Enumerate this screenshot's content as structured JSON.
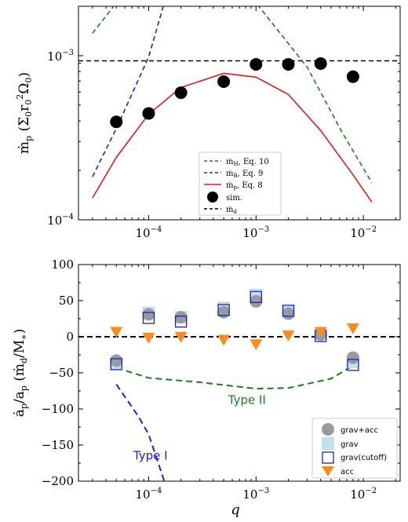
{
  "chart_data": [
    {
      "type": "line",
      "xlabel": "",
      "ylabel_main": "ṁ",
      "ylabel_sub": "p",
      "ylabel_rest": " (Σ",
      "ylabel_tail": "0",
      "ylabel_tail2": "r",
      "ylabel_tail3": "0",
      "ylabel_tail4": "2",
      "ylabel_tail5": "Ω",
      "ylabel_tail6": "0",
      "ylabel_close": ")",
      "xscale": "log",
      "yscale": "log",
      "xlim": [
        2.22e-05,
        0.022
      ],
      "ylim": [
        0.0001,
        0.002
      ],
      "x_ticks": [
        {
          "value": 0.0001,
          "base": "10",
          "exp": "−4"
        },
        {
          "value": 0.001,
          "base": "10",
          "exp": "−3"
        },
        {
          "value": 0.01,
          "base": "10",
          "exp": "−2"
        }
      ],
      "y_ticks": [
        {
          "value": 0.0001,
          "base": "10",
          "exp": "−4"
        },
        {
          "value": 0.001,
          "base": "10",
          "exp": "−3"
        }
      ],
      "series": [
        {
          "name": "ṁH, Eq. 10",
          "style": "dashed",
          "color": "#1a7f1a",
          "points": [
            [
              3e-05,
              0.00137
            ],
            [
              5e-05,
              0.0021
            ],
            [
              0.001,
              0.0021
            ],
            [
              0.003,
              0.00085
            ],
            [
              0.0062,
              0.00035
            ],
            [
              0.012,
              0.000168
            ]
          ]
        },
        {
          "name": "ṁB, Eq. 9",
          "style": "dashed",
          "color": "#1f1fd6",
          "points": [
            [
              3e-05,
              0.000183
            ],
            [
              5e-05,
              0.00036
            ],
            [
              0.0001,
              0.00098
            ],
            [
              0.00014,
              0.0021
            ]
          ]
        },
        {
          "name": "ṁp, Eq. 8",
          "style": "solid",
          "color": "#e31a1a",
          "points": [
            [
              3e-05,
              0.000136
            ],
            [
              5e-05,
              0.00024
            ],
            [
              0.0001,
              0.00044
            ],
            [
              0.0002,
              0.00064
            ],
            [
              0.0005,
              0.00078
            ],
            [
              0.001,
              0.00074
            ],
            [
              0.002,
              0.00058
            ],
            [
              0.004,
              0.00035
            ],
            [
              0.008,
              0.000188
            ],
            [
              0.012,
              0.000128
            ]
          ]
        }
      ],
      "sim": {
        "name": "sim.",
        "color": "#000000",
        "points": [
          [
            5e-05,
            0.000395
          ],
          [
            0.0001,
            0.000445
          ],
          [
            0.0002,
            0.000595
          ],
          [
            0.0005,
            0.000695
          ],
          [
            0.001,
            0.000885
          ],
          [
            0.002,
            0.000885
          ],
          [
            0.004,
            0.000895
          ],
          [
            0.008,
            0.000745
          ]
        ]
      },
      "hline": {
        "name": "ṁd",
        "value": 0.00093,
        "style": "dashed",
        "color": "#000000"
      },
      "legend": {
        "placement": "lower-center",
        "entries": [
          {
            "main": "ṁ",
            "sub": "H",
            "rest": ", Eq. 10"
          },
          {
            "main": "ṁ",
            "sub": "B",
            "rest": ", Eq. 9"
          },
          {
            "main": "ṁ",
            "sub": "p",
            "rest": ", Eq. 8"
          },
          {
            "main": "sim.",
            "sub": "",
            "rest": ""
          },
          {
            "main": "ṁ",
            "sub": "d",
            "rest": ""
          }
        ]
      }
    },
    {
      "type": "scatter",
      "xlabel": "q",
      "ylabel_main": "ȧ",
      "ylabel_sub": "p",
      "ylabel_mid": "/a",
      "ylabel_sub2": "p",
      "ylabel_rest": " (ṁ",
      "ylabel_sub3": "d",
      "ylabel_rest2": "/M",
      "ylabel_sub4": "∗",
      "ylabel_close": ")",
      "xscale": "log",
      "xlim": [
        2.22e-05,
        0.022
      ],
      "ylim": [
        -200,
        100
      ],
      "x_ticks": [
        {
          "value": 0.0001,
          "base": "10",
          "exp": "−4"
        },
        {
          "value": 0.001,
          "base": "10",
          "exp": "−3"
        },
        {
          "value": 0.01,
          "base": "10",
          "exp": "−2"
        }
      ],
      "y_ticks": [
        "100",
        "50",
        "0",
        "−50",
        "−100",
        "−150",
        "−200"
      ],
      "y_tick_values": [
        100,
        50,
        0,
        -50,
        -100,
        -150,
        -200
      ],
      "hline": {
        "value": 0,
        "style": "dashed",
        "color": "#000000"
      },
      "lines": [
        {
          "label": "Type II",
          "color": "#1a7f1a",
          "style": "dashed",
          "points": [
            [
              5e-05,
              -43
            ],
            [
              0.0001,
              -57
            ],
            [
              0.0003,
              -63
            ],
            [
              0.001,
              -72
            ],
            [
              0.002,
              -71
            ],
            [
              0.005,
              -58
            ],
            [
              0.008,
              -40
            ]
          ],
          "label_pos": [
            0.00055,
            -93
          ]
        },
        {
          "label": "Type I",
          "color": "#1f1fd6",
          "style": "dashed",
          "points": [
            [
              5e-05,
              -66
            ],
            [
              8e-05,
              -110
            ],
            [
              0.0001,
              -135
            ],
            [
              0.00014,
              -200
            ]
          ],
          "label_pos": [
            7.2e-05,
            -170
          ]
        }
      ],
      "series": [
        {
          "name": "grav+acc",
          "marker": "circle",
          "color": "#9a9a9a",
          "points": [
            [
              5e-05,
              -33
            ],
            [
              0.0001,
              31
            ],
            [
              0.0002,
              27
            ],
            [
              0.0005,
              34
            ],
            [
              0.001,
              49
            ],
            [
              0.002,
              32
            ],
            [
              0.004,
              3
            ],
            [
              0.008,
              -29
            ]
          ]
        },
        {
          "name": "grav",
          "marker": "square-filled",
          "color": "#bfe3ee",
          "points": [
            [
              5e-05,
              -37
            ],
            [
              0.0001,
              33
            ],
            [
              0.0002,
              27
            ],
            [
              0.0005,
              40
            ],
            [
              0.001,
              58
            ],
            [
              0.002,
              35
            ],
            [
              0.004,
              4
            ],
            [
              0.008,
              -35
            ]
          ]
        },
        {
          "name": "grav(cutoff)",
          "marker": "square-open",
          "color": "#1f1fd6",
          "points": [
            [
              5e-05,
              -38
            ],
            [
              0.0001,
              26
            ],
            [
              0.0002,
              21
            ],
            [
              0.0005,
              37
            ],
            [
              0.001,
              55
            ],
            [
              0.002,
              36
            ],
            [
              0.004,
              1
            ],
            [
              0.008,
              -39
            ]
          ]
        },
        {
          "name": "acc",
          "marker": "triangle-down",
          "color": "#ff8c1a",
          "points": [
            [
              5e-05,
              6
            ],
            [
              0.0001,
              -2
            ],
            [
              0.0002,
              -1
            ],
            [
              0.0005,
              -5
            ],
            [
              0.001,
              -11
            ],
            [
              0.002,
              1
            ],
            [
              0.004,
              6
            ],
            [
              0.008,
              11
            ]
          ]
        }
      ],
      "legend": {
        "placement": "lower-right"
      }
    }
  ]
}
